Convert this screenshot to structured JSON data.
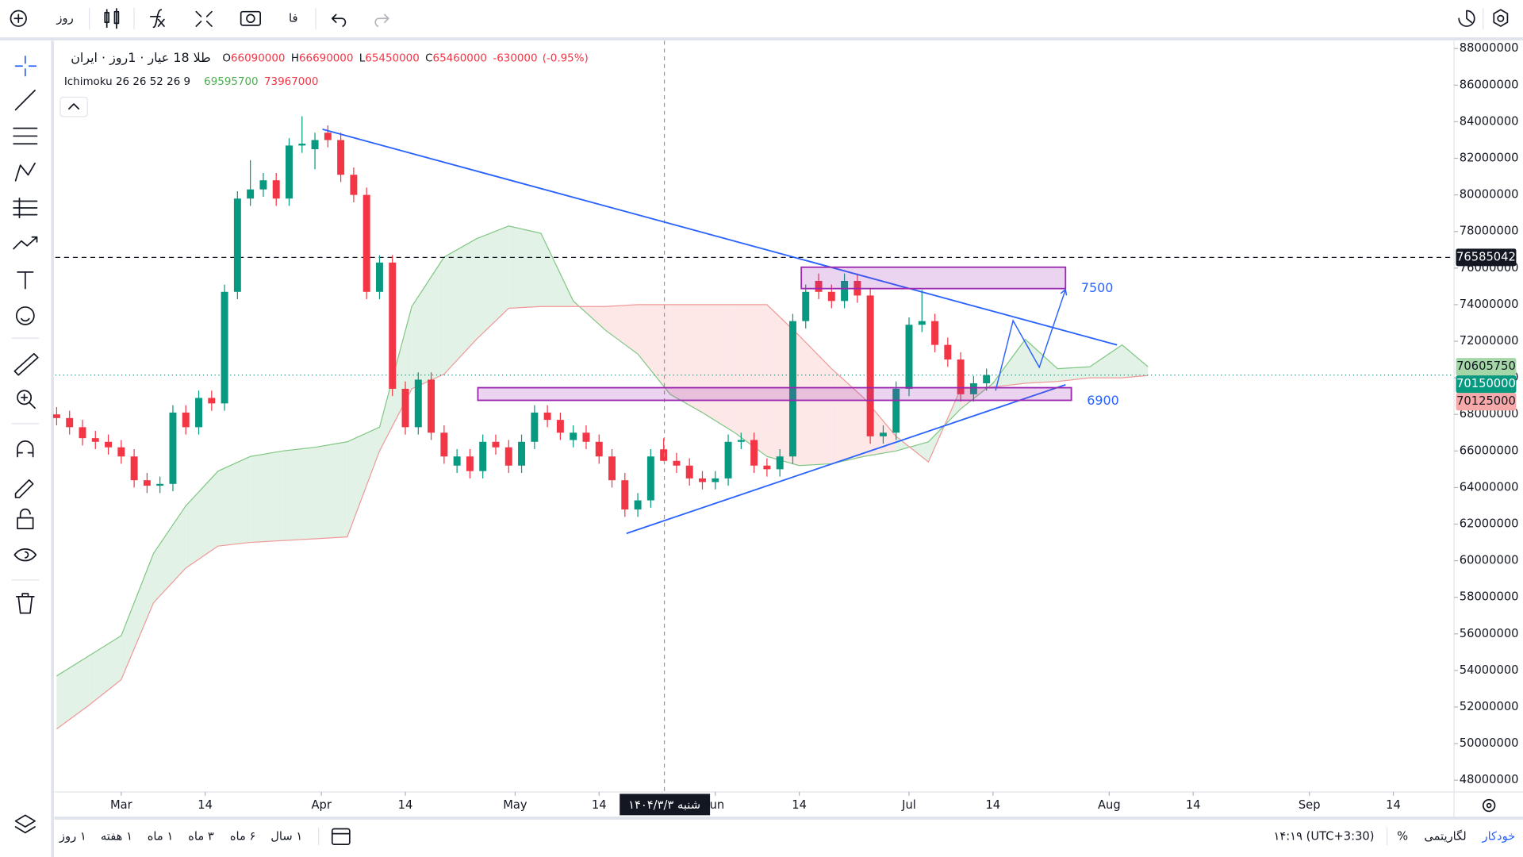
{
  "toolbar": {
    "interval": "روز",
    "language": "فا"
  },
  "header": {
    "symbol": "طلا 18 عیار · 1روز · ایران",
    "ohlc": [
      {
        "label": "O",
        "value": 66090000
      },
      {
        "label": "H",
        "value": 66690000
      },
      {
        "label": "L",
        "value": 65450000
      },
      {
        "label": "C",
        "value": 65460000
      }
    ],
    "change": -630000,
    "change_pct": {
      "value": -0.95,
      "label": "(-0.95%)"
    },
    "indicator": "Ichimoku 26 26 52 26 9",
    "indicator_values": [
      {
        "value": 69595700,
        "color": "#4caf50"
      },
      {
        "value": 73967000,
        "color": "#f23645"
      }
    ]
  },
  "chart_data": {
    "type": "candlestick",
    "up_color": "#089981",
    "down_color": "#f23645",
    "x": [
      -10,
      -8,
      -6,
      -4,
      -2,
      0,
      2,
      4,
      6,
      8,
      10,
      12,
      14,
      16,
      18,
      20,
      22,
      24,
      26,
      28,
      30,
      32,
      34,
      36,
      38,
      40,
      42,
      44,
      46,
      48,
      50,
      52,
      54,
      56,
      58,
      60,
      62,
      64,
      66,
      68,
      70,
      72,
      74,
      76,
      78,
      80,
      82,
      84,
      86,
      88,
      90,
      92,
      94,
      96,
      98,
      100,
      102,
      104,
      106,
      108,
      110,
      112,
      114,
      116,
      118,
      120,
      122,
      124,
      126,
      128,
      130,
      132,
      134
    ],
    "open": [
      68000000,
      67800000,
      67300000,
      66700000,
      66500000,
      66200000,
      65700000,
      64400000,
      64100000,
      64200000,
      68100000,
      67300000,
      68900000,
      68600000,
      74700000,
      79800000,
      80300000,
      80800000,
      79800000,
      82700000,
      82500000,
      83400000,
      83000000,
      81100000,
      80000000,
      74700000,
      76300000,
      69400000,
      67300000,
      69900000,
      67000000,
      65200000,
      65700000,
      64900000,
      66500000,
      66200000,
      65200000,
      66500000,
      68100000,
      67700000,
      66600000,
      67000000,
      66500000,
      65700000,
      64400000,
      62800000,
      63300000,
      66090000,
      65460000,
      65200000,
      64500000,
      64300000,
      64500000,
      66500000,
      66600000,
      65200000,
      65000000,
      65700000,
      73100000,
      75300000,
      74700000,
      74200000,
      75300000,
      74500000,
      66800000,
      67000000,
      69400000,
      72900000,
      73100000,
      71800000,
      71000000,
      69100000,
      69700000
    ],
    "high": [
      68400000,
      68200000,
      67700000,
      67100000,
      66900000,
      66600000,
      66100000,
      64800000,
      64600000,
      68500000,
      68500000,
      69300000,
      69300000,
      75100000,
      80200000,
      81900000,
      81200000,
      81200000,
      83100000,
      84300000,
      83400000,
      83800000,
      83400000,
      81500000,
      80400000,
      76700000,
      76700000,
      69800000,
      70300000,
      70300000,
      67400000,
      66100000,
      66100000,
      66900000,
      66900000,
      66600000,
      66900000,
      68500000,
      68500000,
      68100000,
      67400000,
      67400000,
      66900000,
      66100000,
      64800000,
      63700000,
      66100000,
      66690000,
      65900000,
      65600000,
      64900000,
      64900000,
      66900000,
      67000000,
      67000000,
      65600000,
      66100000,
      73500000,
      75100000,
      75700000,
      75100000,
      75700000,
      75700000,
      74900000,
      67400000,
      69800000,
      73300000,
      74800000,
      73500000,
      72200000,
      71400000,
      70100000,
      70500000
    ],
    "low": [
      67400000,
      66900000,
      66300000,
      66100000,
      65800000,
      65300000,
      64000000,
      63700000,
      63700000,
      63800000,
      66900000,
      66900000,
      68200000,
      68200000,
      74300000,
      79400000,
      79900000,
      79400000,
      79400000,
      82300000,
      81400000,
      82600000,
      80700000,
      79600000,
      74300000,
      74300000,
      69000000,
      66900000,
      66900000,
      66600000,
      65300000,
      64800000,
      64500000,
      64500000,
      65800000,
      64800000,
      64800000,
      66100000,
      67300000,
      66600000,
      66200000,
      66100000,
      65300000,
      64000000,
      62400000,
      62400000,
      62900000,
      65450000,
      64800000,
      64100000,
      63900000,
      63900000,
      64100000,
      66100000,
      64800000,
      64600000,
      64600000,
      65300000,
      72700000,
      74300000,
      73800000,
      73800000,
      74100000,
      66400000,
      66400000,
      66600000,
      69000000,
      72500000,
      71400000,
      70600000,
      68700000,
      68700000,
      69300000
    ],
    "close": [
      67800000,
      67300000,
      66700000,
      66500000,
      66200000,
      65700000,
      64400000,
      64100000,
      64200000,
      68100000,
      67300000,
      68900000,
      68600000,
      74700000,
      79800000,
      80300000,
      80800000,
      79800000,
      82700000,
      82800000,
      83000000,
      83000000,
      81100000,
      80000000,
      74700000,
      76300000,
      69400000,
      67300000,
      69900000,
      67000000,
      65700000,
      65700000,
      64900000,
      66500000,
      66200000,
      65200000,
      66500000,
      68100000,
      67700000,
      67000000,
      67000000,
      66500000,
      65700000,
      64400000,
      62800000,
      63300000,
      65700000,
      65460000,
      65200000,
      64500000,
      64300000,
      64500000,
      66500000,
      66600000,
      65200000,
      65000000,
      65700000,
      73100000,
      74700000,
      74700000,
      74200000,
      75300000,
      74500000,
      66800000,
      67000000,
      69400000,
      72900000,
      73100000,
      71800000,
      71000000,
      69100000,
      69700000,
      70150000
    ],
    "cloud": {
      "x": [
        -10,
        -5,
        0,
        5,
        10,
        15,
        20,
        25,
        30,
        35,
        40,
        45,
        50,
        55,
        60,
        65,
        70,
        75,
        80,
        85,
        90,
        95,
        100,
        105,
        110,
        115,
        120,
        125,
        130,
        135,
        140,
        145,
        150,
        155,
        159
      ],
      "span_a": {
        "color": "#81c784",
        "fill": "#e3f2e6",
        "values": [
          53700000,
          54800000,
          55900000,
          60400000,
          63000000,
          64900000,
          65700000,
          66000000,
          66200000,
          66500000,
          67300000,
          73900000,
          76600000,
          77600000,
          78300000,
          77900000,
          74200000,
          72600000,
          71300000,
          69100000,
          68100000,
          67000000,
          65700000,
          65200000,
          65300000,
          65700000,
          66000000,
          66500000,
          68300000,
          69700000,
          72100000,
          70500000,
          70600000,
          71800000,
          70605750
        ]
      },
      "span_b": {
        "color": "#ef9a9a",
        "fill": "#fde7e7",
        "values": [
          50800000,
          52100000,
          53500000,
          57700000,
          59600000,
          60800000,
          61000000,
          61100000,
          61200000,
          61300000,
          66000000,
          69400000,
          70200000,
          72100000,
          73800000,
          73900000,
          73900000,
          73900000,
          74000000,
          74000000,
          74000000,
          74000000,
          74000000,
          72300000,
          70500000,
          68900000,
          66800000,
          65400000,
          69400000,
          69500000,
          69700000,
          69800000,
          70000000,
          70000000,
          70125000
        ]
      }
    },
    "ylim": [
      47360000,
      88425000
    ],
    "yticks": [
      48000000,
      50000000,
      52000000,
      54000000,
      56000000,
      58000000,
      60000000,
      62000000,
      64000000,
      66000000,
      68000000,
      70000000,
      72000000,
      74000000,
      76000000,
      78000000,
      80000000,
      82000000,
      84000000,
      86000000,
      88000000
    ],
    "xlim": [
      -10.2,
      206.1
    ],
    "xticks": [
      {
        "value": 0,
        "label": "Mar"
      },
      {
        "value": 13,
        "label": "14"
      },
      {
        "value": 31,
        "label": "Apr"
      },
      {
        "value": 44,
        "label": "14"
      },
      {
        "value": 61,
        "label": "May"
      },
      {
        "value": 74,
        "label": "14"
      },
      {
        "value": 92,
        "label": "Jun"
      },
      {
        "value": 105,
        "label": "14"
      },
      {
        "value": 122,
        "label": "Jul"
      },
      {
        "value": 135,
        "label": "14"
      },
      {
        "value": 153,
        "label": "Aug"
      },
      {
        "value": 166,
        "label": "14"
      },
      {
        "value": 184,
        "label": "Sep"
      },
      {
        "value": 197,
        "label": "14"
      }
    ],
    "price_labels": [
      {
        "value": 76585042,
        "bg": "#131722",
        "fg": "#ffffff",
        "line": "dashed"
      },
      {
        "value": 70605750,
        "bg": "#a5d6a7",
        "fg": "#131722"
      },
      {
        "value": 70150000,
        "bg": "#089981",
        "fg": "#ffffff",
        "line": "dotted"
      },
      {
        "value": 70125000,
        "bg": "#f7a9a9",
        "fg": "#131722"
      }
    ],
    "crosshair_label": "شنبه ۱۴۰۴/۳/۳",
    "annotations": [
      "7500",
      "6900"
    ]
  },
  "ranges": [
    "۱ روز",
    "۱ هفته",
    "۱ ماه",
    "۳ ماه",
    "۶ ماه",
    "۱ سال"
  ],
  "status": {
    "time": "۱۴:۱۹ (UTC+3:30)",
    "percent": "%",
    "log": "لگاریتمی",
    "auto": "خودکار"
  }
}
